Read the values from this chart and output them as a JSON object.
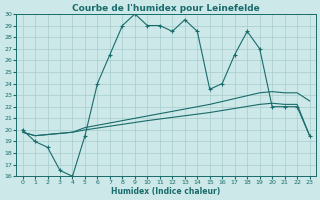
{
  "title": "Courbe de l'humidex pour Leinefelde",
  "xlabel": "Humidex (Indice chaleur)",
  "bg_color": "#cce8e8",
  "grid_color": "#a8cccc",
  "line_color": "#1a6b6b",
  "ylim": [
    16,
    30
  ],
  "xlim": [
    -0.5,
    23.5
  ],
  "yticks": [
    16,
    17,
    18,
    19,
    20,
    21,
    22,
    23,
    24,
    25,
    26,
    27,
    28,
    29,
    30
  ],
  "xticks": [
    0,
    1,
    2,
    3,
    4,
    5,
    6,
    7,
    8,
    9,
    10,
    11,
    12,
    13,
    14,
    15,
    16,
    17,
    18,
    19,
    20,
    21,
    22,
    23
  ],
  "line1_x": [
    0,
    1,
    2,
    3,
    4,
    5,
    6,
    7,
    8,
    9,
    10,
    11,
    12,
    13,
    14,
    15,
    16,
    17,
    18,
    19,
    20,
    21,
    22,
    23
  ],
  "line1_y": [
    20,
    19,
    18.5,
    16.5,
    16.0,
    19.5,
    24.0,
    26.5,
    29.0,
    30.0,
    29.0,
    29.0,
    28.5,
    29.5,
    28.5,
    23.5,
    24.0,
    26.5,
    28.5,
    27.0,
    22.0,
    22.0,
    22.0,
    19.5
  ],
  "line2_x": [
    0,
    1,
    2,
    3,
    4,
    5,
    10,
    15,
    19,
    20,
    21,
    22,
    23
  ],
  "line2_y": [
    19.8,
    19.5,
    19.6,
    19.7,
    19.8,
    20.0,
    20.8,
    21.5,
    22.2,
    22.3,
    22.2,
    22.2,
    19.5
  ],
  "line3_x": [
    0,
    1,
    2,
    3,
    4,
    5,
    10,
    15,
    19,
    20,
    21,
    22,
    23
  ],
  "line3_y": [
    19.8,
    19.5,
    19.6,
    19.7,
    19.8,
    20.2,
    21.2,
    22.2,
    23.2,
    23.3,
    23.2,
    23.2,
    22.5
  ],
  "title_fontsize": 6.5,
  "tick_fontsize": 4.5,
  "xlabel_fontsize": 5.5
}
